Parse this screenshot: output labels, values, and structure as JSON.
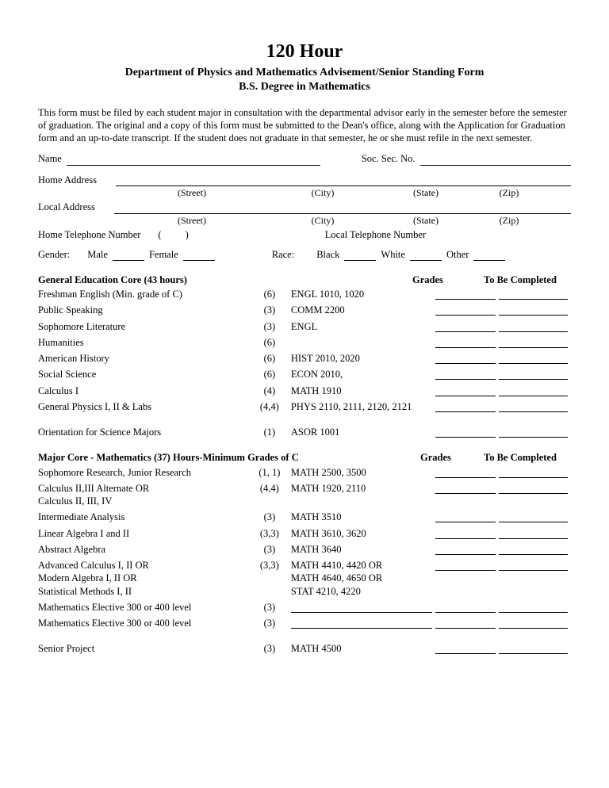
{
  "title": {
    "main": "120 Hour",
    "line1": "Department of Physics and Mathematics Advisement/Senior Standing Form",
    "line2": "B.S. Degree in Mathematics"
  },
  "intro": "This form must be filed by each student major in consultation with the departmental advisor early in the semester before the semester of graduation.  The original and a copy of this form must be submitted to the Dean's office, along with the Application for Graduation form and an up-to-date transcript.   If the student does not graduate in that semester, he or she must refile in the next  semester.",
  "labels": {
    "name": "Name",
    "ssn": "Soc. Sec. No.",
    "home_addr": "Home Address",
    "local_addr": "Local Address",
    "street": "(Street)",
    "city": "(City)",
    "state": "(State)",
    "zip": "(Zip)",
    "home_tel": "Home Telephone Number",
    "local_tel": "Local Telephone Number",
    "paren_open": "(",
    "paren_close": ")",
    "gender": "Gender:",
    "male": "Male",
    "female": "Female",
    "race": "Race:",
    "black": "Black",
    "white": "White",
    "other": "Other"
  },
  "headers": {
    "gen_ed": "General Education Core (43 hours)",
    "grades": "Grades",
    "tbc": "To Be Completed",
    "major": "Major Core - Mathematics  (37) Hours-Minimum Grades of C"
  },
  "gen_ed": [
    {
      "name": "Freshman English (Min. grade of C)",
      "hrs": "(6)",
      "code": "ENGL 1010, 1020"
    },
    {
      "name": "Public Speaking",
      "hrs": "(3)",
      "code": "COMM 2200"
    },
    {
      "name": "Sophomore Literature",
      "hrs": "(3)",
      "code": "ENGL"
    },
    {
      "name": "Humanities",
      "hrs": "(6)",
      "code": ""
    },
    {
      "name": "American History",
      "hrs": "(6)",
      "code": "HIST 2010, 2020"
    },
    {
      "name": "Social Science",
      "hrs": "(6)",
      "code": "ECON 2010,"
    },
    {
      "name": "Calculus I",
      "hrs": "(4)",
      "code": "MATH 1910"
    },
    {
      "name": "General Physics  I, II & Labs",
      "hrs": "(4,4)",
      "code": "PHYS 2110, 2111, 2120, 2121"
    }
  ],
  "orientation": {
    "name": "Orientation for Science Majors",
    "hrs": "(1)",
    "code": "ASOR 1001"
  },
  "major": [
    {
      "name": "Sophomore Research,  Junior Research",
      "hrs": "(1, 1)",
      "code": "MATH 2500, 3500"
    },
    {
      "name": "Calculus II,III Alternate OR\nCalculus II, III, IV",
      "hrs": "(4,4)",
      "code": "MATH 1920, 2110"
    },
    {
      "name": "Intermediate Analysis",
      "hrs": "(3)",
      "code": "MATH 3510"
    },
    {
      "name": "Linear Algebra  I and II",
      "hrs": "(3,3)",
      "code": "MATH 3610, 3620"
    },
    {
      "name": "Abstract Algebra",
      "hrs": "(3)",
      "code": "MATH 3640"
    },
    {
      "name": "Advanced Calculus I, II   OR\nModern Algebra I, II  OR\nStatistical Methods I, II",
      "hrs": "(3,3)",
      "code": "MATH 4410, 4420  OR\nMATH 4640, 4650  OR\nSTAT 4210, 4220"
    },
    {
      "name": "Mathematics Elective 300 or 400 level",
      "hrs": "(3)",
      "code": "",
      "code_blank": true
    },
    {
      "name": "Mathematics Elective 300 or 400 level",
      "hrs": "(3)",
      "code": "",
      "code_blank": true
    }
  ],
  "senior": {
    "name": "Senior Project",
    "hrs": "(3)",
    "code": "MATH 4500"
  }
}
